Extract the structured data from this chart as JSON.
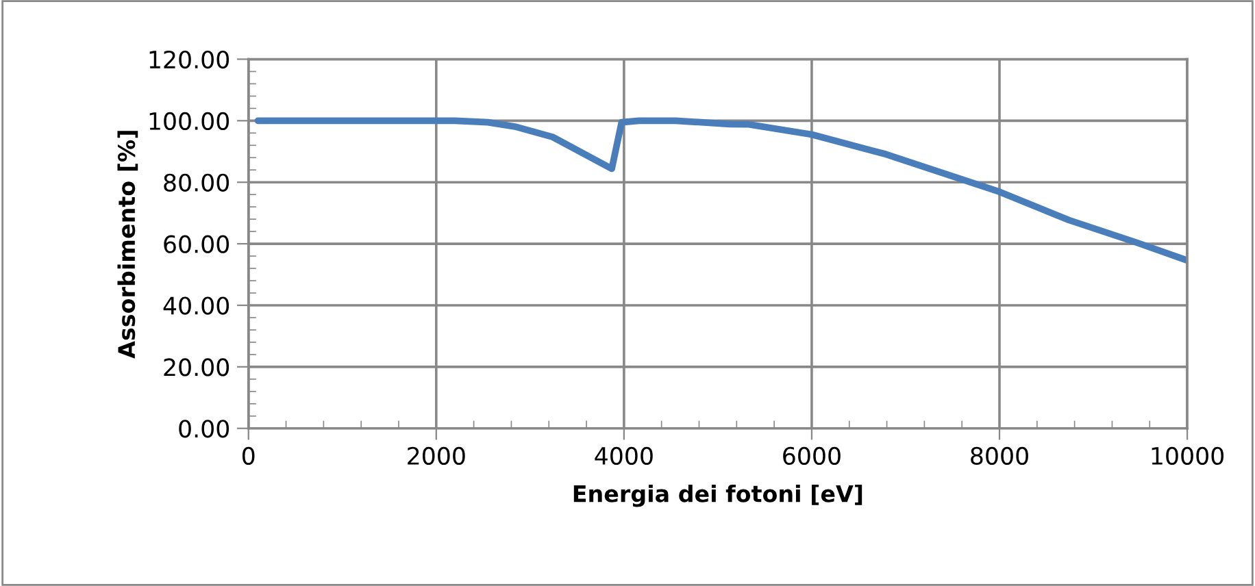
{
  "chart_data": {
    "type": "line",
    "xlabel": "Energia dei fotoni [eV]",
    "ylabel": "Assorbimento [%]",
    "x": [
      100,
      2200,
      2550,
      2850,
      3240,
      3870,
      3975,
      4160,
      4550,
      5130,
      5330,
      6000,
      6790,
      8000,
      8740,
      9470,
      10000
    ],
    "series": [
      {
        "color": "#4a7ebb",
        "values": [
          100,
          100,
          99.5,
          98,
          94.7,
          84.4,
          99.5,
          100,
          100,
          98.9,
          98.8,
          95.5,
          89.1,
          76.9,
          67.7,
          60.3,
          54.6
        ]
      }
    ],
    "xlim": [
      0,
      10000
    ],
    "xticks": [
      0,
      2000,
      4000,
      6000,
      8000,
      10000
    ],
    "ylim": [
      0,
      120
    ],
    "yticks": [
      {
        "value": 0,
        "label": "0.00"
      },
      {
        "value": 20,
        "label": "20.00"
      },
      {
        "value": 40,
        "label": "40.00"
      },
      {
        "value": 60,
        "label": "60.00"
      },
      {
        "value": 80,
        "label": "80.00"
      },
      {
        "value": 100,
        "label": "100.00"
      },
      {
        "value": 120,
        "label": "120.00"
      }
    ],
    "grid": true,
    "legend": false,
    "marker": "none",
    "line_style": "solid"
  }
}
